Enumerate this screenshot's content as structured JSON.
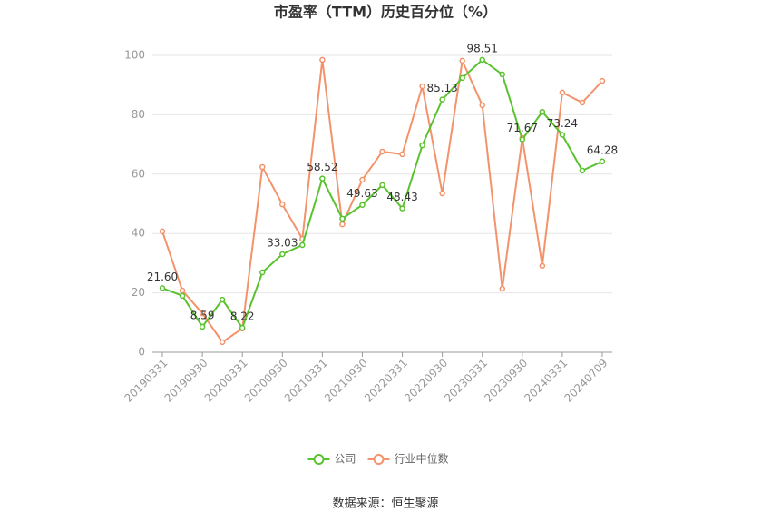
{
  "chart_data": {
    "type": "line",
    "title": "市盈率（TTM）历史百分位（%）",
    "source": "数据来源：恒生聚源",
    "categories": [
      "20190331",
      null,
      "20190930",
      null,
      "20200331",
      null,
      "20200930",
      null,
      "20210331",
      null,
      "20210930",
      null,
      "20220331",
      null,
      "20220930",
      null,
      "20230331",
      null,
      "20230930",
      null,
      "20240331",
      null,
      "20240709"
    ],
    "series": [
      {
        "name": "公司",
        "color": "#5ac22e",
        "values": [
          21.6,
          19.0,
          8.59,
          17.7,
          8.22,
          26.9,
          33.03,
          36.1,
          58.52,
          45.0,
          49.63,
          56.3,
          48.43,
          69.7,
          85.13,
          92.4,
          98.51,
          93.6,
          71.67,
          81.0,
          73.24,
          61.2,
          64.28
        ],
        "value_labels": [
          "21.60",
          null,
          "8.59",
          null,
          "8.22",
          null,
          "33.03",
          null,
          "58.52",
          null,
          "49.63",
          null,
          "48.43",
          null,
          "85.13",
          null,
          "98.51",
          null,
          "71.67",
          null,
          "73.24",
          null,
          "64.28"
        ]
      },
      {
        "name": "行业中位数",
        "color": "#f3936b",
        "values": [
          40.7,
          20.8,
          13.1,
          3.4,
          8.0,
          62.4,
          49.8,
          38.2,
          98.5,
          43.1,
          58.1,
          67.6,
          66.7,
          89.6,
          53.5,
          98.2,
          83.2,
          21.4,
          72.2,
          29.1,
          87.5,
          84.1,
          91.4
        ]
      }
    ],
    "ylim": [
      0,
      100
    ],
    "yticks": [
      0,
      20,
      40,
      60,
      80,
      100
    ],
    "grid": true,
    "legend": "bottom"
  }
}
